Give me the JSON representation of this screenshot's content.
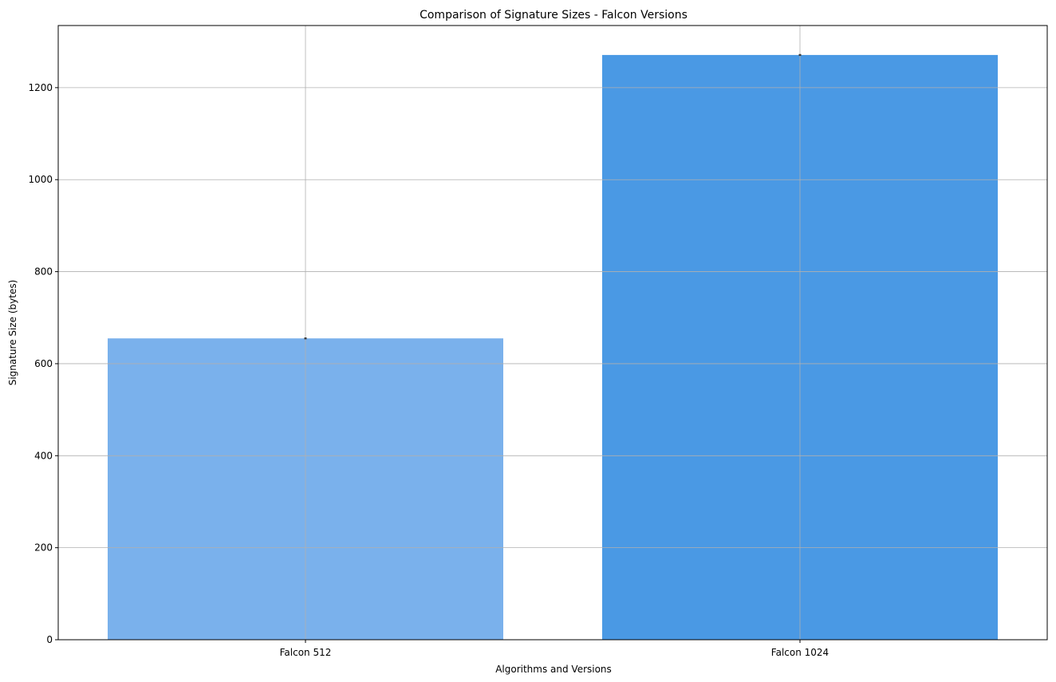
{
  "chart_data": {
    "type": "bar",
    "title": "Comparison of Signature Sizes - Falcon Versions",
    "xlabel": "Algorithms and Versions",
    "ylabel": "Signature Size (bytes)",
    "categories": [
      "Falcon 512",
      "Falcon 1024"
    ],
    "values": [
      655,
      1271
    ],
    "error": [
      2,
      2
    ],
    "ylim": [
      0,
      1335
    ],
    "yticks": [
      0,
      200,
      400,
      600,
      800,
      1000,
      1200
    ],
    "ytick_labels": [
      "0",
      "200",
      "400",
      "600",
      "800",
      "1000",
      "1200"
    ],
    "grid": true,
    "bar_colors": [
      "#7ab1ec",
      "#4a99e4"
    ],
    "grid_color": "#b0b0b0",
    "errorbar_color": "#3b3b3b"
  }
}
